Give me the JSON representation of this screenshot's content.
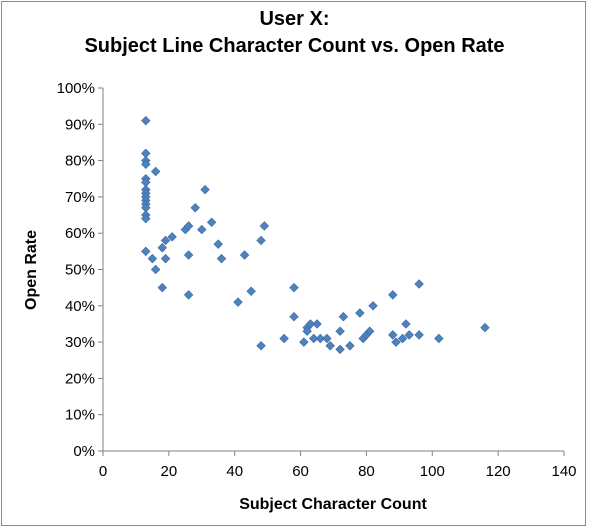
{
  "chart_data": {
    "type": "scatter",
    "title": [
      "User X:",
      "Subject Line Character Count vs. Open Rate"
    ],
    "xlabel": "Subject Character Count",
    "ylabel": "Open Rate",
    "xlim": [
      0,
      140
    ],
    "ylim": [
      0,
      1
    ],
    "xticks": [
      0,
      20,
      40,
      60,
      80,
      100,
      120,
      140
    ],
    "yticks": [
      0,
      0.1,
      0.2,
      0.3,
      0.4,
      0.5,
      0.6,
      0.7,
      0.8,
      0.9,
      1.0
    ],
    "ytick_labels": [
      "0%",
      "10%",
      "20%",
      "30%",
      "40%",
      "50%",
      "60%",
      "70%",
      "80%",
      "90%",
      "100%"
    ],
    "grid": false,
    "legend": "none",
    "marker": "diamond",
    "marker_color": "#4f81bd",
    "points": [
      [
        13,
        0.91
      ],
      [
        13,
        0.82
      ],
      [
        13,
        0.8
      ],
      [
        13,
        0.79
      ],
      [
        13,
        0.75
      ],
      [
        13,
        0.74
      ],
      [
        13,
        0.72
      ],
      [
        13,
        0.71
      ],
      [
        13,
        0.7
      ],
      [
        13,
        0.69
      ],
      [
        13,
        0.68
      ],
      [
        13,
        0.67
      ],
      [
        13,
        0.65
      ],
      [
        13,
        0.64
      ],
      [
        13,
        0.55
      ],
      [
        16,
        0.77
      ],
      [
        15,
        0.53
      ],
      [
        16,
        0.5
      ],
      [
        18,
        0.45
      ],
      [
        18,
        0.56
      ],
      [
        19,
        0.53
      ],
      [
        19,
        0.58
      ],
      [
        21,
        0.59
      ],
      [
        25,
        0.61
      ],
      [
        26,
        0.62
      ],
      [
        26,
        0.54
      ],
      [
        26,
        0.43
      ],
      [
        28,
        0.67
      ],
      [
        30,
        0.61
      ],
      [
        31,
        0.72
      ],
      [
        33,
        0.63
      ],
      [
        35,
        0.57
      ],
      [
        36,
        0.53
      ],
      [
        41,
        0.41
      ],
      [
        43,
        0.54
      ],
      [
        45,
        0.44
      ],
      [
        48,
        0.58
      ],
      [
        48,
        0.29
      ],
      [
        49,
        0.62
      ],
      [
        55,
        0.31
      ],
      [
        58,
        0.45
      ],
      [
        58,
        0.37
      ],
      [
        61,
        0.3
      ],
      [
        62,
        0.34
      ],
      [
        62,
        0.33
      ],
      [
        63,
        0.35
      ],
      [
        64,
        0.31
      ],
      [
        65,
        0.35
      ],
      [
        66,
        0.31
      ],
      [
        68,
        0.31
      ],
      [
        69,
        0.29
      ],
      [
        72,
        0.33
      ],
      [
        72,
        0.28
      ],
      [
        73,
        0.37
      ],
      [
        75,
        0.29
      ],
      [
        78,
        0.38
      ],
      [
        79,
        0.31
      ],
      [
        80,
        0.32
      ],
      [
        81,
        0.33
      ],
      [
        82,
        0.4
      ],
      [
        88,
        0.43
      ],
      [
        88,
        0.32
      ],
      [
        89,
        0.3
      ],
      [
        91,
        0.31
      ],
      [
        92,
        0.35
      ],
      [
        93,
        0.32
      ],
      [
        96,
        0.46
      ],
      [
        96,
        0.32
      ],
      [
        102,
        0.31
      ],
      [
        116,
        0.34
      ]
    ]
  }
}
